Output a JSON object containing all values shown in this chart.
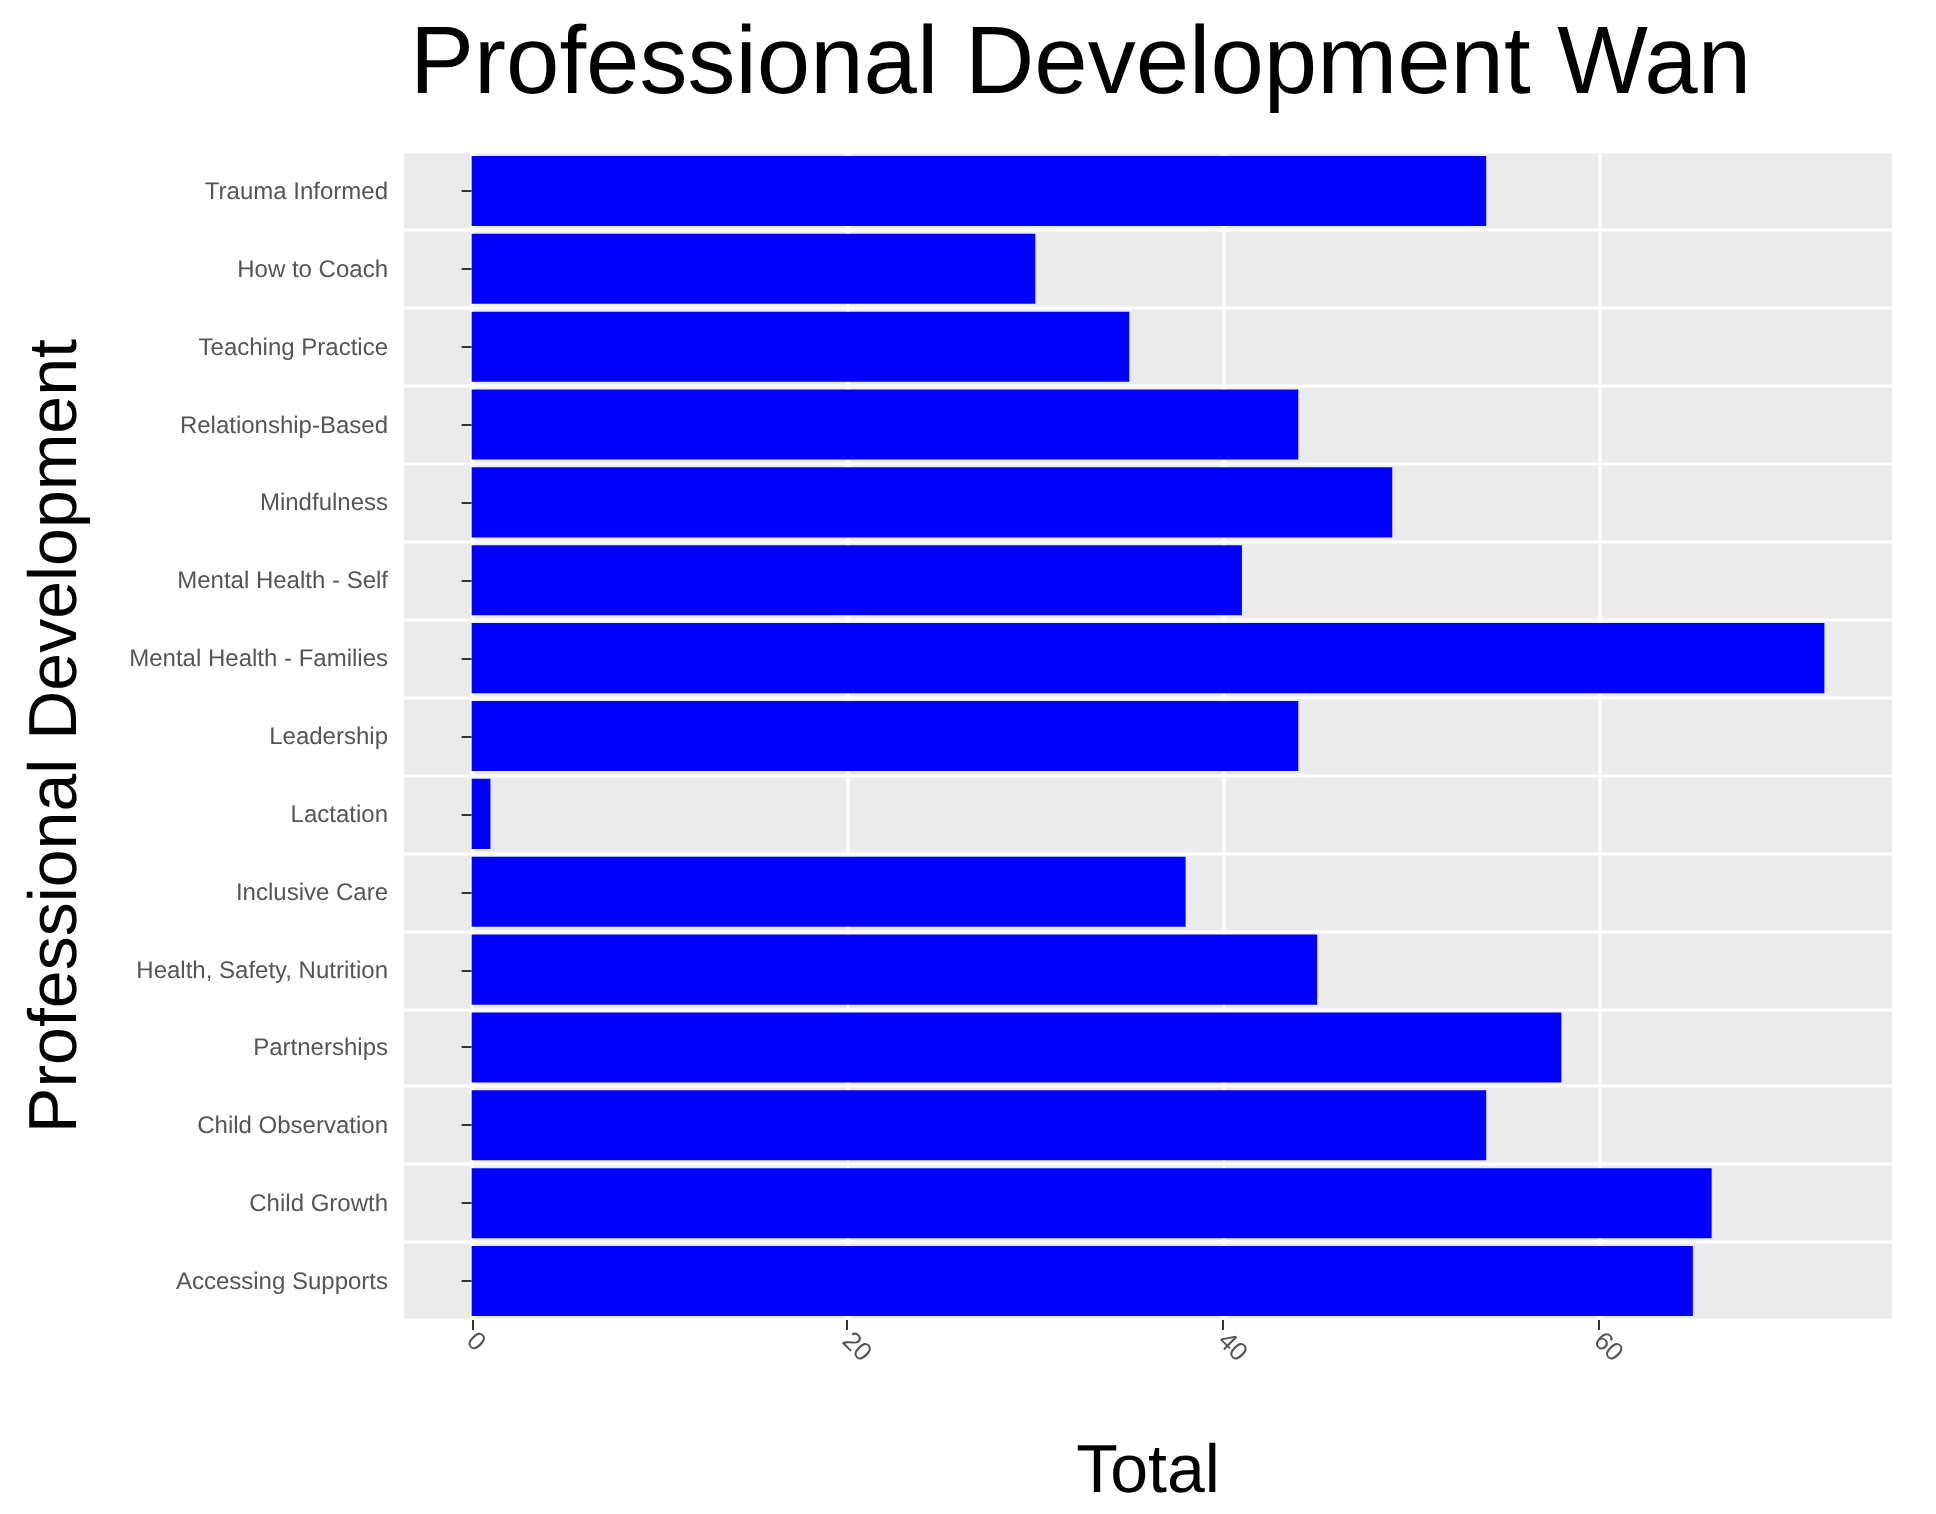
{
  "chart_data": {
    "type": "bar",
    "orientation": "horizontal",
    "title": "Professional Development Wan",
    "xlabel": "Total",
    "ylabel": "Professional Development",
    "categories": [
      "Trauma Informed",
      "How to Coach",
      "Teaching Practice",
      "Relationship-Based",
      "Mindfulness",
      "Mental Health - Self",
      "Mental Health - Families",
      "Leadership",
      "Lactation",
      "Inclusive Care",
      "Health, Safety, Nutrition",
      "Partnerships",
      "Child Observation",
      "Child Growth",
      "Accessing Supports"
    ],
    "values": [
      54,
      30,
      35,
      44,
      49,
      41,
      72,
      44,
      1,
      38,
      45,
      58,
      54,
      66,
      65
    ],
    "color": "#0000ff",
    "xlim": [
      -3.6,
      75.6
    ],
    "xticks": [
      0,
      20,
      40,
      60
    ],
    "grid": true
  }
}
